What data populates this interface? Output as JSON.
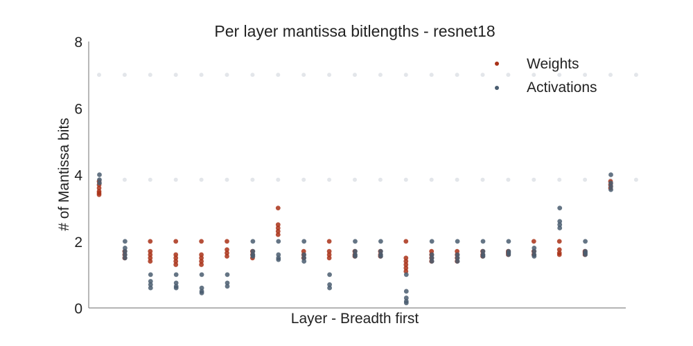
{
  "chart_data": {
    "type": "scatter",
    "title": "Per layer mantissa bitlengths - resnet18",
    "xlabel": "Layer - Breadth first",
    "ylabel": "# of Mantissa bits",
    "ylim": [
      0,
      8
    ],
    "yticks": [
      0,
      2,
      4,
      6,
      8
    ],
    "xlim": [
      0,
      21
    ],
    "colors": {
      "weights": "#a93117",
      "activations": "#4a5d70"
    },
    "legend": {
      "placement": "top-right",
      "entries": [
        "Weights",
        "Activations"
      ]
    },
    "series": [
      {
        "name": "Weights",
        "points": [
          [
            0,
            3.8
          ],
          [
            0,
            3.7
          ],
          [
            0,
            3.6
          ],
          [
            0,
            3.5
          ],
          [
            0,
            3.45
          ],
          [
            0,
            3.4
          ],
          [
            1,
            1.7
          ],
          [
            1,
            1.6
          ],
          [
            1,
            1.5
          ],
          [
            2,
            2.0
          ],
          [
            2,
            1.7
          ],
          [
            2,
            1.6
          ],
          [
            2,
            1.5
          ],
          [
            2,
            1.4
          ],
          [
            3,
            2.0
          ],
          [
            3,
            1.6
          ],
          [
            3,
            1.5
          ],
          [
            3,
            1.4
          ],
          [
            3,
            1.3
          ],
          [
            4,
            2.0
          ],
          [
            4,
            1.6
          ],
          [
            4,
            1.5
          ],
          [
            4,
            1.4
          ],
          [
            4,
            1.3
          ],
          [
            5,
            2.0
          ],
          [
            5,
            1.75
          ],
          [
            5,
            1.65
          ],
          [
            5,
            1.55
          ],
          [
            6,
            1.7
          ],
          [
            6,
            1.6
          ],
          [
            6,
            1.5
          ],
          [
            7,
            3.0
          ],
          [
            7,
            2.5
          ],
          [
            7,
            2.4
          ],
          [
            7,
            2.3
          ],
          [
            7,
            2.2
          ],
          [
            8,
            1.7
          ],
          [
            8,
            1.6
          ],
          [
            8,
            1.5
          ],
          [
            9,
            2.0
          ],
          [
            9,
            1.7
          ],
          [
            9,
            1.6
          ],
          [
            9,
            1.5
          ],
          [
            10,
            1.7
          ],
          [
            10,
            1.6
          ],
          [
            10,
            1.55
          ],
          [
            11,
            1.7
          ],
          [
            11,
            1.6
          ],
          [
            11,
            1.55
          ],
          [
            12,
            2.0
          ],
          [
            12,
            1.5
          ],
          [
            12,
            1.4
          ],
          [
            12,
            1.3
          ],
          [
            12,
            1.2
          ],
          [
            12,
            1.1
          ],
          [
            13,
            1.7
          ],
          [
            13,
            1.6
          ],
          [
            13,
            1.5
          ],
          [
            13,
            1.4
          ],
          [
            14,
            1.7
          ],
          [
            14,
            1.6
          ],
          [
            14,
            1.5
          ],
          [
            14,
            1.4
          ],
          [
            15,
            1.7
          ],
          [
            15,
            1.6
          ],
          [
            15,
            1.55
          ],
          [
            16,
            1.7
          ],
          [
            16,
            1.65
          ],
          [
            16,
            1.6
          ],
          [
            17,
            2.0
          ],
          [
            17,
            1.7
          ],
          [
            17,
            1.6
          ],
          [
            18,
            2.0
          ],
          [
            18,
            1.75
          ],
          [
            18,
            1.65
          ],
          [
            18,
            1.6
          ],
          [
            19,
            1.7
          ],
          [
            19,
            1.65
          ],
          [
            19,
            1.6
          ],
          [
            20,
            3.8
          ],
          [
            20,
            3.7
          ],
          [
            20,
            3.6
          ]
        ]
      },
      {
        "name": "Activations",
        "points": [
          [
            0,
            4.0
          ],
          [
            0,
            3.85
          ],
          [
            0,
            3.75
          ],
          [
            1,
            2.0
          ],
          [
            1,
            1.8
          ],
          [
            1,
            1.7
          ],
          [
            1,
            1.6
          ],
          [
            1,
            1.5
          ],
          [
            2,
            1.0
          ],
          [
            2,
            0.8
          ],
          [
            2,
            0.7
          ],
          [
            2,
            0.6
          ],
          [
            3,
            1.0
          ],
          [
            3,
            0.75
          ],
          [
            3,
            0.65
          ],
          [
            3,
            0.6
          ],
          [
            4,
            1.0
          ],
          [
            4,
            0.6
          ],
          [
            4,
            0.5
          ],
          [
            4,
            0.45
          ],
          [
            5,
            1.0
          ],
          [
            5,
            0.75
          ],
          [
            5,
            0.65
          ],
          [
            6,
            2.0
          ],
          [
            6,
            1.7
          ],
          [
            6,
            1.6
          ],
          [
            6,
            1.55
          ],
          [
            7,
            2.0
          ],
          [
            7,
            1.6
          ],
          [
            7,
            1.5
          ],
          [
            7,
            1.45
          ],
          [
            8,
            2.0
          ],
          [
            8,
            1.6
          ],
          [
            8,
            1.5
          ],
          [
            8,
            1.4
          ],
          [
            9,
            1.0
          ],
          [
            9,
            0.7
          ],
          [
            9,
            0.6
          ],
          [
            10,
            2.0
          ],
          [
            10,
            1.7
          ],
          [
            10,
            1.6
          ],
          [
            10,
            1.55
          ],
          [
            11,
            2.0
          ],
          [
            11,
            1.7
          ],
          [
            11,
            1.6
          ],
          [
            11,
            1.55
          ],
          [
            12,
            1.0
          ],
          [
            12,
            0.5
          ],
          [
            12,
            0.3
          ],
          [
            12,
            0.2
          ],
          [
            12,
            0.15
          ],
          [
            13,
            2.0
          ],
          [
            13,
            1.6
          ],
          [
            13,
            1.5
          ],
          [
            13,
            1.4
          ],
          [
            14,
            2.0
          ],
          [
            14,
            1.6
          ],
          [
            14,
            1.5
          ],
          [
            14,
            1.4
          ],
          [
            15,
            2.0
          ],
          [
            15,
            1.7
          ],
          [
            15,
            1.6
          ],
          [
            15,
            1.55
          ],
          [
            16,
            2.0
          ],
          [
            16,
            1.7
          ],
          [
            16,
            1.65
          ],
          [
            16,
            1.6
          ],
          [
            17,
            1.8
          ],
          [
            17,
            1.7
          ],
          [
            17,
            1.6
          ],
          [
            17,
            1.55
          ],
          [
            18,
            3.0
          ],
          [
            18,
            2.6
          ],
          [
            18,
            2.5
          ],
          [
            18,
            2.4
          ],
          [
            19,
            2.0
          ],
          [
            19,
            1.7
          ],
          [
            19,
            1.65
          ],
          [
            19,
            1.6
          ],
          [
            20,
            4.0
          ],
          [
            20,
            3.75
          ],
          [
            20,
            3.65
          ],
          [
            20,
            3.55
          ]
        ]
      }
    ]
  }
}
